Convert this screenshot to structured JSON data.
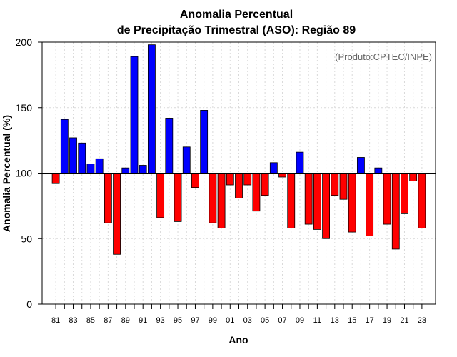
{
  "chart_data": {
    "type": "bar",
    "title_line1": "Anomalia Percentual",
    "title_line2": "de Precipitação Trimestral (ASO): Região 89",
    "credit": "(Produto:CPTEC/INPE)",
    "xlabel": "Ano",
    "ylabel": "Anomalia Percentual (%)",
    "ylim": [
      0,
      200
    ],
    "yticks": [
      0,
      50,
      100,
      150,
      200
    ],
    "baseline": 100,
    "grid": true,
    "colors": {
      "above": "#0000ff",
      "below": "#ff0000"
    },
    "categories": [
      "81",
      "82",
      "83",
      "84",
      "85",
      "86",
      "87",
      "88",
      "89",
      "90",
      "91",
      "92",
      "93",
      "94",
      "95",
      "96",
      "97",
      "98",
      "99",
      "00",
      "01",
      "02",
      "03",
      "04",
      "05",
      "06",
      "07",
      "08",
      "09",
      "10",
      "11",
      "12",
      "13",
      "14",
      "15",
      "16",
      "17",
      "18",
      "19",
      "20",
      "21",
      "22",
      "23"
    ],
    "xtick_labels": [
      "81",
      "83",
      "85",
      "87",
      "89",
      "91",
      "93",
      "95",
      "97",
      "99",
      "01",
      "03",
      "05",
      "07",
      "09",
      "11",
      "13",
      "15",
      "17",
      "19",
      "21",
      "23"
    ],
    "values": [
      92,
      141,
      127,
      123,
      107,
      111,
      62,
      38,
      104,
      189,
      106,
      198,
      66,
      142,
      63,
      120,
      89,
      148,
      62,
      58,
      91,
      81,
      91,
      71,
      83,
      108,
      97,
      58,
      116,
      61,
      57,
      50,
      83,
      80,
      55,
      112,
      52,
      104,
      61,
      42,
      69,
      94,
      58
    ]
  }
}
